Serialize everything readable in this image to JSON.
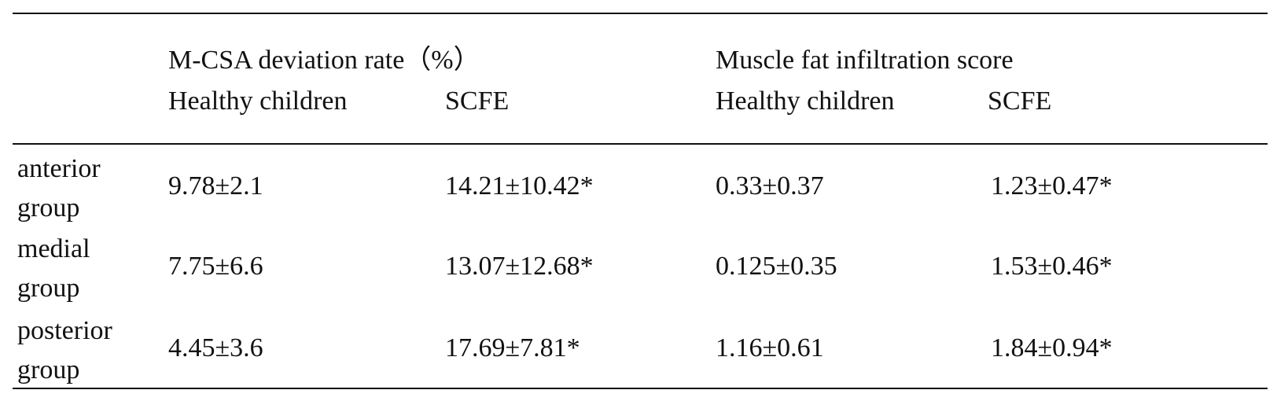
{
  "table": {
    "header": {
      "group1": "M-CSA deviation rate（%）",
      "group2": "Muscle fat infiltration score",
      "subcols": [
        "Healthy children",
        "SCFE",
        "Healthy children",
        "SCFE"
      ]
    },
    "rows": [
      {
        "label": [
          "anterior",
          "group"
        ],
        "cells": [
          "9.78±2.1",
          "14.21±10.42*",
          "0.33±0.37",
          "1.23±0.47*"
        ]
      },
      {
        "label": [
          "medial",
          "group"
        ],
        "cells": [
          "7.75±6.6",
          "13.07±12.68*",
          "0.125±0.35",
          "1.53±0.46*"
        ]
      },
      {
        "label": [
          "posterior",
          "group"
        ],
        "cells": [
          "4.45±3.6",
          "17.69±7.81*",
          "1.16±0.61",
          "1.84±0.94*"
        ]
      }
    ]
  }
}
